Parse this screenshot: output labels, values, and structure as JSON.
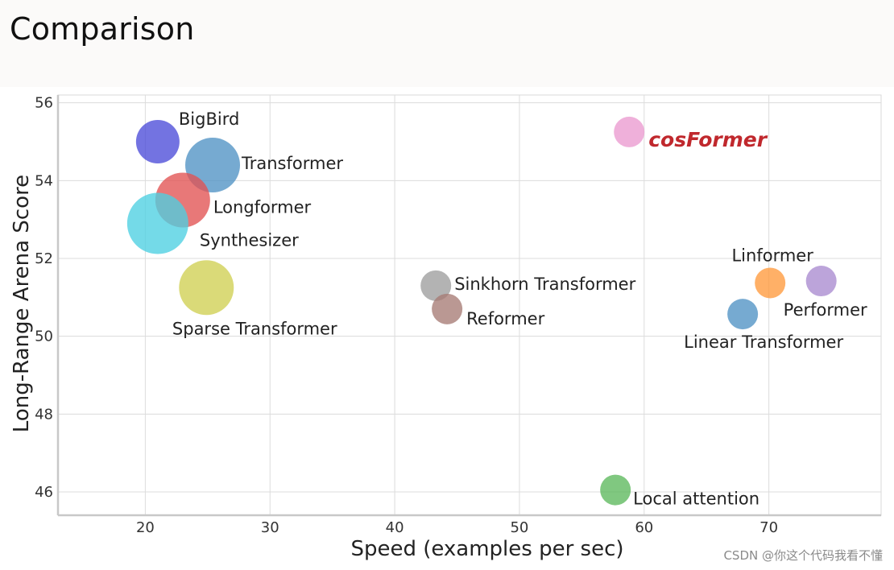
{
  "page": {
    "title": "Comparison",
    "watermark": "CSDN @你这个代码我看不懂"
  },
  "chart_data": {
    "type": "scatter",
    "xlabel": "Speed (examples per sec)",
    "ylabel": "Long-Range Arena Score",
    "xlim": [
      13,
      79
    ],
    "ylim": [
      45.4,
      56.2
    ],
    "xticks": [
      20,
      30,
      40,
      50,
      60,
      70
    ],
    "yticks": [
      46,
      48,
      50,
      52,
      54,
      56
    ],
    "grid": true,
    "points": [
      {
        "label": "BigBird",
        "x": 21.0,
        "y": 55.0,
        "color": "#4b4bd8"
      },
      {
        "label": "Transformer",
        "x": 25.4,
        "y": 54.4,
        "color": "#4f92c4"
      },
      {
        "label": "Longformer",
        "x": 23.0,
        "y": 53.5,
        "color": "#e25252"
      },
      {
        "label": "Synthesizer",
        "x": 21.0,
        "y": 52.9,
        "color": "#4dd0e1"
      },
      {
        "label": "Sparse Transformer",
        "x": 24.9,
        "y": 51.25,
        "color": "#cfcf52"
      },
      {
        "label": "cosFormer",
        "x": 58.8,
        "y": 55.25,
        "color": "#ea9ad0",
        "label_color": "#c0282d",
        "label_style": "bold-italic"
      },
      {
        "label": "Sinkhorn Transformer",
        "x": 43.3,
        "y": 51.3,
        "color": "#9e9e9e"
      },
      {
        "label": "Reformer",
        "x": 44.2,
        "y": 50.7,
        "color": "#a77b75"
      },
      {
        "label": "Linformer",
        "x": 70.1,
        "y": 51.37,
        "color": "#ff9a3c"
      },
      {
        "label": "Performer",
        "x": 74.2,
        "y": 51.42,
        "color": "#a98ad0"
      },
      {
        "label": "Linear Transformer",
        "x": 67.9,
        "y": 50.57,
        "color": "#4f92c4"
      },
      {
        "label": "Local attention",
        "x": 57.7,
        "y": 46.05,
        "color": "#5cb85c"
      }
    ]
  }
}
